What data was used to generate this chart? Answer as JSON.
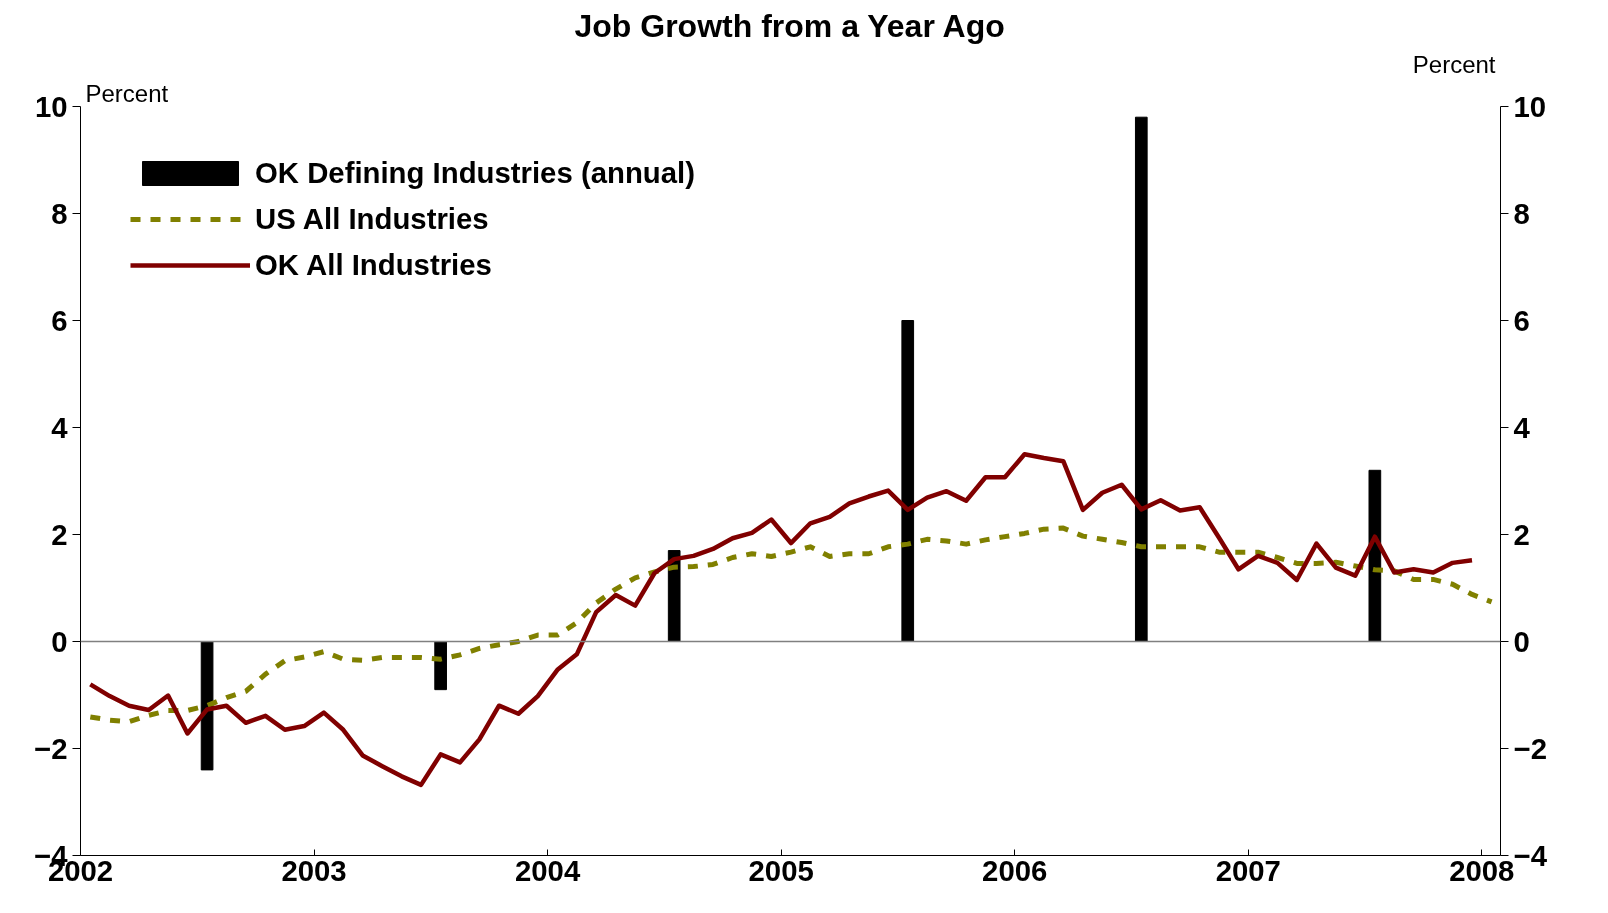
{
  "chart_data": {
    "type": "line",
    "title": "Job Growth from a Year Ago",
    "ylabel": "Percent",
    "y2label": "Percent",
    "xlim": [
      2002,
      2008.08
    ],
    "xticks": [
      2002,
      2003,
      2004,
      2005,
      2006,
      2007,
      2008
    ],
    "ylim": [
      -4,
      10
    ],
    "yticks": [
      -4,
      -2,
      0,
      2,
      4,
      6,
      8,
      10
    ],
    "y2lim": [
      -4,
      10
    ],
    "y2ticks": [
      -4,
      -2,
      0,
      2,
      4,
      6,
      8,
      10
    ],
    "grid": false,
    "legend": "top left",
    "ref_lines": [
      {
        "axis": "y",
        "value": 0,
        "color": "#808080"
      }
    ],
    "series": [
      {
        "name": "OK Defining Industries (annual)",
        "type": "bar",
        "color": "#000000",
        "x": [
          2002.542,
          2003.542,
          2004.542,
          2005.542,
          2006.542,
          2007.542
        ],
        "values": [
          -2.4,
          -0.9,
          1.7,
          6.0,
          9.8,
          3.2
        ]
      },
      {
        "name": "US All Industries",
        "color": "#808000",
        "line_style": "dashed",
        "x": [
          2002.042,
          2002.125,
          2002.208,
          2002.292,
          2002.375,
          2002.458,
          2002.542,
          2002.625,
          2002.708,
          2002.792,
          2002.875,
          2002.958,
          2003.042,
          2003.125,
          2003.208,
          2003.292,
          2003.375,
          2003.458,
          2003.542,
          2003.625,
          2003.708,
          2003.792,
          2003.875,
          2003.958,
          2004.042,
          2004.125,
          2004.208,
          2004.292,
          2004.375,
          2004.458,
          2004.542,
          2004.625,
          2004.708,
          2004.792,
          2004.875,
          2004.958,
          2005.042,
          2005.125,
          2005.208,
          2005.292,
          2005.375,
          2005.458,
          2005.542,
          2005.625,
          2005.708,
          2005.792,
          2005.875,
          2005.958,
          2006.042,
          2006.125,
          2006.208,
          2006.292,
          2006.375,
          2006.458,
          2006.542,
          2006.625,
          2006.708,
          2006.792,
          2006.875,
          2006.958,
          2007.042,
          2007.125,
          2007.208,
          2007.292,
          2007.375,
          2007.458,
          2007.542,
          2007.625,
          2007.708,
          2007.792,
          2007.875,
          2007.958,
          2008.042
        ],
        "values": [
          -1.41,
          -1.47,
          -1.5,
          -1.38,
          -1.29,
          -1.29,
          -1.2,
          -1.05,
          -0.93,
          -0.61,
          -0.36,
          -0.29,
          -0.19,
          -0.33,
          -0.35,
          -0.3,
          -0.3,
          -0.3,
          -0.33,
          -0.25,
          -0.13,
          -0.06,
          0.0,
          0.12,
          0.12,
          0.35,
          0.72,
          0.98,
          1.19,
          1.3,
          1.39,
          1.4,
          1.44,
          1.57,
          1.64,
          1.59,
          1.67,
          1.77,
          1.59,
          1.64,
          1.64,
          1.77,
          1.82,
          1.91,
          1.88,
          1.82,
          1.9,
          1.96,
          2.02,
          2.1,
          2.12,
          1.97,
          1.91,
          1.85,
          1.77,
          1.77,
          1.77,
          1.77,
          1.67,
          1.67,
          1.67,
          1.57,
          1.46,
          1.46,
          1.48,
          1.41,
          1.34,
          1.32,
          1.16,
          1.16,
          1.07,
          0.88,
          0.74
        ]
      },
      {
        "name": "OK All Industries",
        "color": "#800000",
        "line_style": "solid",
        "x": [
          2002.042,
          2002.125,
          2002.208,
          2002.292,
          2002.375,
          2002.458,
          2002.542,
          2002.625,
          2002.708,
          2002.792,
          2002.875,
          2002.958,
          2003.042,
          2003.125,
          2003.208,
          2003.292,
          2003.375,
          2003.458,
          2003.542,
          2003.625,
          2003.708,
          2003.792,
          2003.875,
          2003.958,
          2004.042,
          2004.125,
          2004.208,
          2004.292,
          2004.375,
          2004.458,
          2004.542,
          2004.625,
          2004.708,
          2004.792,
          2004.875,
          2004.958,
          2005.042,
          2005.125,
          2005.208,
          2005.292,
          2005.375,
          2005.458,
          2005.542,
          2005.625,
          2005.708,
          2005.792,
          2005.875,
          2005.958,
          2006.042,
          2006.125,
          2006.208,
          2006.292,
          2006.375,
          2006.458,
          2006.542,
          2006.625,
          2006.708,
          2006.792,
          2006.875,
          2006.958,
          2007.042,
          2007.125,
          2007.208,
          2007.292,
          2007.375,
          2007.458,
          2007.542,
          2007.625,
          2007.708,
          2007.792,
          2007.875,
          2007.958
        ],
        "values": [
          -0.8,
          -1.02,
          -1.2,
          -1.28,
          -1.01,
          -1.72,
          -1.27,
          -1.2,
          -1.52,
          -1.39,
          -1.65,
          -1.58,
          -1.33,
          -1.65,
          -2.13,
          -2.33,
          -2.52,
          -2.68,
          -2.11,
          -2.26,
          -1.83,
          -1.2,
          -1.35,
          -1.02,
          -0.53,
          -0.24,
          0.55,
          0.87,
          0.67,
          1.28,
          1.54,
          1.6,
          1.73,
          1.93,
          2.03,
          2.28,
          1.84,
          2.21,
          2.33,
          2.58,
          2.71,
          2.82,
          2.46,
          2.69,
          2.81,
          2.63,
          3.07,
          3.07,
          3.5,
          3.43,
          3.37,
          2.46,
          2.78,
          2.93,
          2.47,
          2.64,
          2.45,
          2.51,
          1.94,
          1.35,
          1.6,
          1.47,
          1.15,
          1.83,
          1.38,
          1.23,
          1.96,
          1.29,
          1.35,
          1.29,
          1.47,
          1.52
        ]
      }
    ]
  }
}
